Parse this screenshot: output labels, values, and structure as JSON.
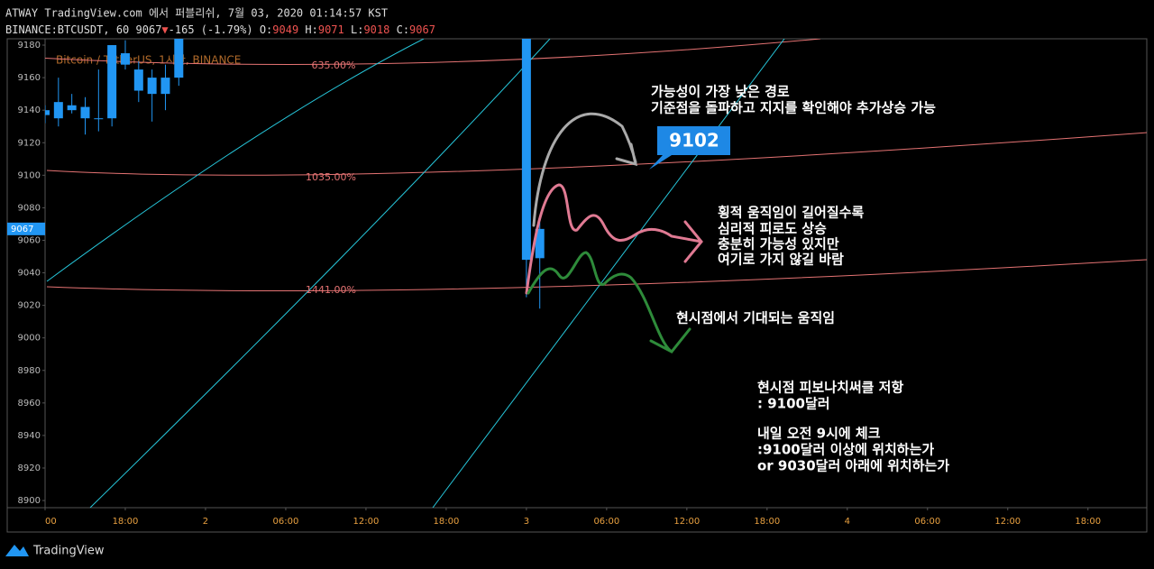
{
  "header": {
    "line1": "ATWAY TradingView.com 에서 퍼블리쉬, 7월 03, 2020 01:14:57 KST",
    "symbol": "BINANCE:BTCUSDT, 60",
    "change_arrow": "▼",
    "change": "-165 (-1.79%)",
    "o_label": "O:",
    "h_label": "H:",
    "l_label": "L:",
    "c_label": "C:"
  },
  "chart_data": {
    "type": "candlestick",
    "watermark": "Bitcoin / TetherUS, 1시간, BINANCE",
    "x": [
      12,
      13,
      14,
      15,
      16,
      17,
      18,
      19,
      20,
      21,
      22,
      48,
      49
    ],
    "open": [
      9140,
      9145,
      9143,
      9142,
      9135,
      9135,
      9175,
      9165,
      9160,
      9150,
      9160,
      9190,
      9049
    ],
    "high": [
      9143,
      9160,
      9150,
      9148,
      9165,
      9180,
      9183,
      9170,
      9165,
      9168,
      9184,
      9195,
      9071
    ],
    "low": [
      9132,
      9130,
      9138,
      9125,
      9127,
      9130,
      9165,
      9145,
      9133,
      9140,
      9155,
      9025,
      9018
    ],
    "close": [
      9137,
      9135,
      9140,
      9135,
      9135,
      9180,
      9168,
      9152,
      9150,
      9160,
      9184,
      9048,
      9067
    ],
    "color": "#2196f3",
    "xlim": [
      12,
      94.4
    ],
    "ylim": [
      8895.6,
      9183.9
    ],
    "xticks": [
      {
        "value": 12,
        "label": "00"
      },
      {
        "value": 18,
        "label": "18:00"
      },
      {
        "value": 24,
        "label": "2"
      },
      {
        "value": 30,
        "label": "06:00"
      },
      {
        "value": 36,
        "label": "12:00"
      },
      {
        "value": 42,
        "label": "18:00"
      },
      {
        "value": 48,
        "label": "3"
      },
      {
        "value": 54,
        "label": "06:00"
      },
      {
        "value": 60,
        "label": "12:00"
      },
      {
        "value": 66,
        "label": "18:00"
      },
      {
        "value": 72,
        "label": "4"
      },
      {
        "value": 78,
        "label": "06:00"
      },
      {
        "value": 84,
        "label": "12:00"
      },
      {
        "value": 90,
        "label": "18:00"
      }
    ],
    "yticks": [
      8900,
      8920,
      8940,
      8960,
      8980,
      9000,
      9020,
      9040,
      9060,
      9080,
      9100,
      9120,
      9140,
      9160,
      9180
    ],
    "grid": false,
    "fib_levels": [
      "635.00%",
      "1035.00%",
      "1441.00%"
    ],
    "callout": "9102",
    "annotations": {
      "least_likely": [
        "가능성이 가장 낮은 경로",
        "기준점을 돌파하고 지지를 확인해야 추가상승 가능"
      ],
      "sideways": [
        "횡적 움직임이 길어질수록",
        "심리적 피로도 상승",
        "충분히 가능성 있지만",
        "여기로 가지 않길 바람"
      ],
      "expected": "현시점에서 기대되는 움직임",
      "resistance": [
        "현시점 피보나치써클 저항",
        ": 9100달러"
      ],
      "check": [
        "내일 오전 9시에 체크",
        ":9100달러 이상에 위치하는가",
        "or 9030달러 아래에 위치하는가"
      ]
    }
  },
  "footer": {
    "brand": "TradingView"
  }
}
